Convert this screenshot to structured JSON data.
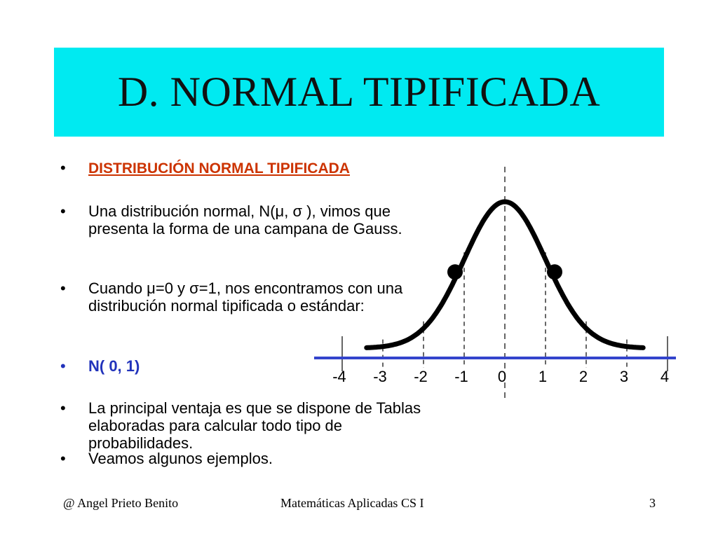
{
  "slide": {
    "title": "D. NORMAL TIPIFICADA"
  },
  "bullets": [
    {
      "dot": "•",
      "text": "DISTRIBUCIÓN  NORMAL TIPIFICADA"
    },
    {
      "dot": "•",
      "text": "Una distribución normal, N(μ, σ ), vimos que presenta la forma de una campana de Gauss."
    },
    {
      "dot": "•",
      "text": "Cuando  μ=0  y  σ=1, nos encontramos con una distribución normal tipificada o estándar:"
    },
    {
      "dot": "•",
      "text": "N( 0, 1)"
    },
    {
      "dot": "•",
      "text": "La principal ventaja es que se dispone de Tablas elaboradas para calcular todo tipo de probabilidades."
    },
    {
      "dot": "•",
      "text": "Veamos algunos ejemplos."
    }
  ],
  "colors": {
    "title_bg": "#00eaf1",
    "heading": "#cc3300",
    "accent_blue": "#2233bb",
    "axis": "#3344cc",
    "curve": "#000000"
  },
  "chart_data": {
    "type": "line",
    "title": "",
    "xlabel": "",
    "ylabel": "",
    "tick_labels": [
      "-4",
      "-3",
      "-2",
      "-1",
      "0",
      "1",
      "2",
      "3",
      "4"
    ],
    "x_ticks": [
      -4,
      -3,
      -2,
      -1,
      0,
      1,
      2,
      3,
      4
    ],
    "xlim": [
      -4,
      4
    ],
    "series": [
      {
        "values": "standard normal density N(0,1)",
        "x_range": [
          -3.4,
          3.4
        ]
      }
    ],
    "inflection_points": [
      -1,
      1
    ]
  },
  "footer": {
    "author": "@   Angel Prieto Benito",
    "course": "Matemáticas Aplicadas CS I",
    "page": "3"
  }
}
